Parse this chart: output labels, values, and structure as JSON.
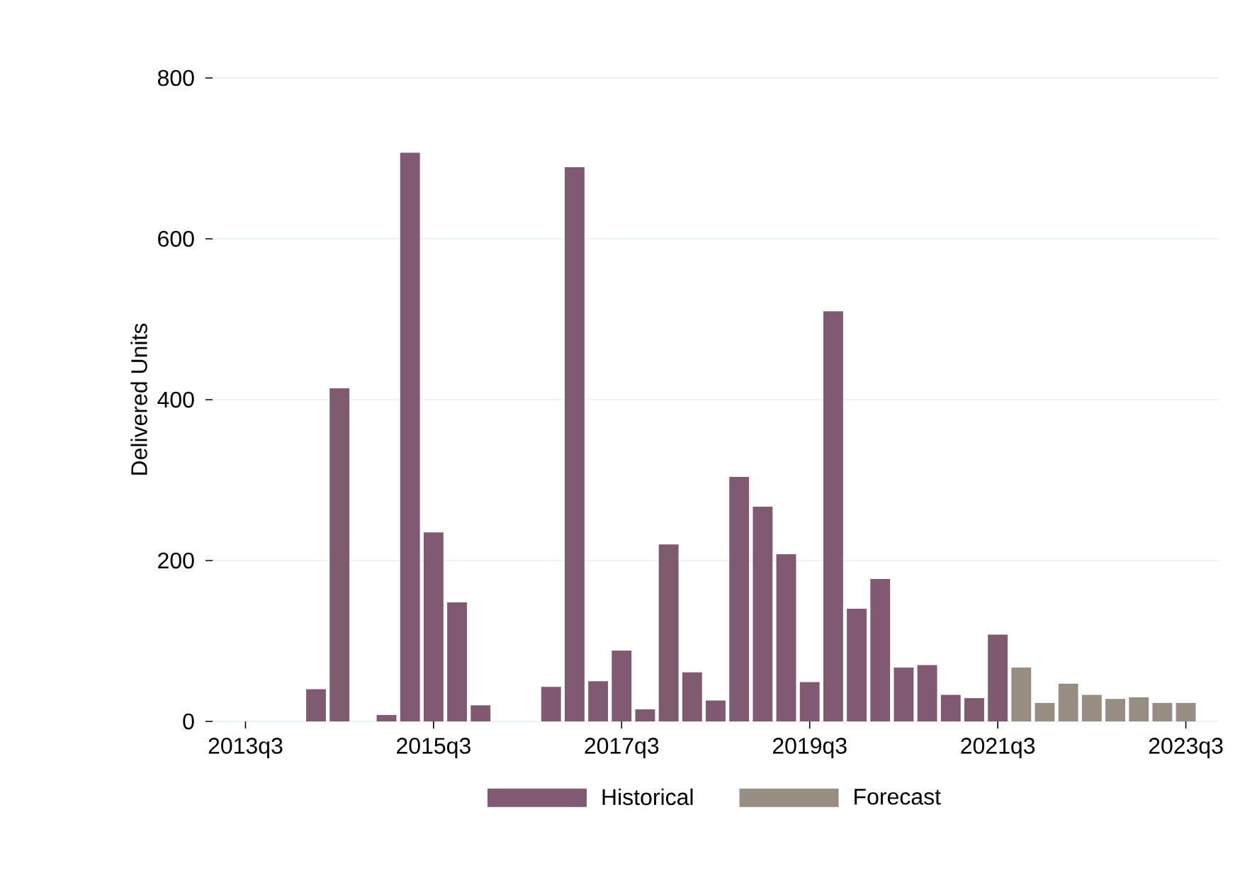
{
  "chart_data": {
    "type": "bar",
    "ylabel": "Delivered Units",
    "categories": [
      "2013q3",
      null,
      null,
      null,
      null,
      null,
      null,
      null,
      "2015q3",
      null,
      null,
      null,
      null,
      null,
      null,
      null,
      "2017q3",
      null,
      null,
      null,
      null,
      null,
      null,
      null,
      "2019q3",
      null,
      null,
      null,
      null,
      null,
      null,
      null,
      "2021q3",
      null,
      null,
      null,
      null,
      null,
      null,
      null,
      "2023q3"
    ],
    "series": [
      {
        "name": "Historical",
        "color": "#7f5a70",
        "values": [
          null,
          null,
          null,
          40,
          414,
          0,
          8,
          707,
          235,
          148,
          20,
          0,
          0,
          43,
          689,
          50,
          88,
          15,
          220,
          61,
          26,
          304,
          267,
          208,
          49,
          510,
          140,
          177,
          67,
          70,
          33,
          29,
          108,
          null,
          null,
          null,
          null,
          null,
          null,
          null,
          null
        ]
      },
      {
        "name": "Forecast",
        "color": "#978e83",
        "values": [
          null,
          null,
          null,
          null,
          null,
          null,
          null,
          null,
          null,
          null,
          null,
          null,
          null,
          null,
          null,
          null,
          null,
          null,
          null,
          null,
          null,
          null,
          null,
          null,
          null,
          null,
          null,
          null,
          null,
          null,
          null,
          null,
          null,
          67,
          23,
          47,
          33,
          28,
          30,
          23,
          23
        ]
      }
    ],
    "ylim": [
      0,
      800
    ],
    "yticks": [
      0,
      200,
      400,
      600,
      800
    ],
    "grid": "y",
    "legend": "bottom"
  }
}
